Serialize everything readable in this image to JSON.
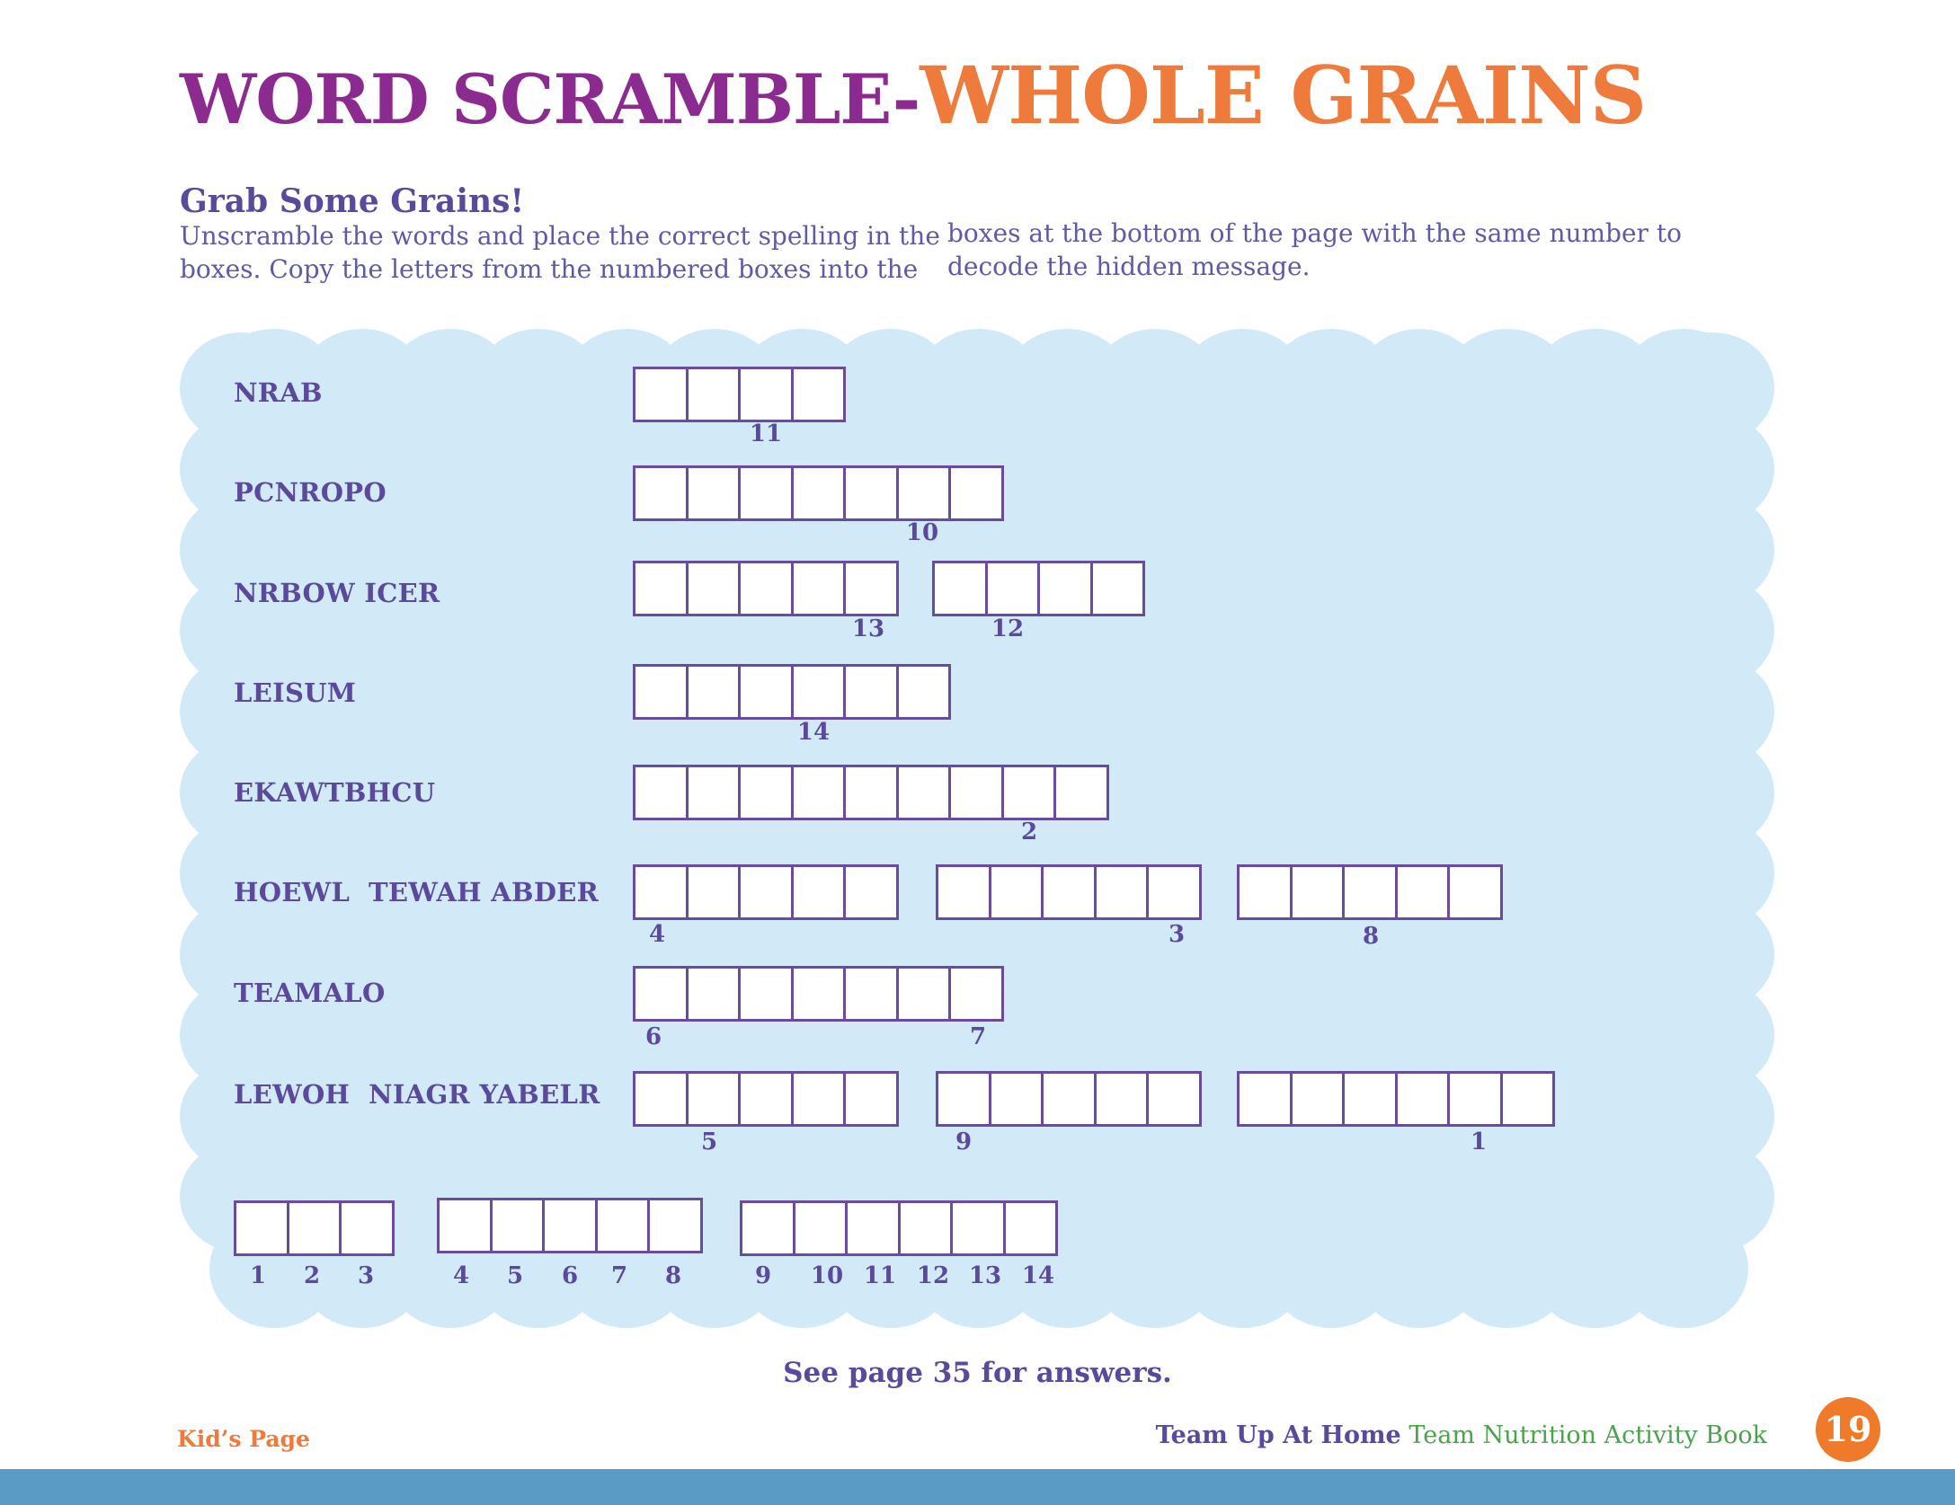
{
  "title": {
    "part1": "WORD SCRAMBLE-",
    "part2": "WHOLE GRAINS"
  },
  "subtitle": "Grab Some Grains!",
  "instructions": {
    "left_line1": "Unscramble the words and place the correct spelling in the",
    "left_line2": "boxes. Copy the letters from the numbered boxes into the",
    "right_line1": "boxes at the bottom of the page with the same number to",
    "right_line2": "decode the hidden message."
  },
  "puzzle": {
    "clues": [
      {
        "text": "NRAB",
        "box_counts": [
          4
        ],
        "numbers": [
          "11"
        ]
      },
      {
        "text": "PCNROPO",
        "box_counts": [
          7
        ],
        "numbers": [
          "10"
        ]
      },
      {
        "text": "NRBOW ICER",
        "box_counts": [
          5,
          4
        ],
        "numbers": [
          "13",
          "12"
        ]
      },
      {
        "text": "LEISUM",
        "box_counts": [
          6
        ],
        "numbers": [
          "14"
        ]
      },
      {
        "text": "EKAWTBHCU",
        "box_counts": [
          9
        ],
        "numbers": [
          "2"
        ]
      },
      {
        "text": "HOEWL  TEWAH ABDER",
        "box_counts": [
          5,
          5,
          5
        ],
        "numbers": [
          "4",
          "3",
          "8"
        ]
      },
      {
        "text": "TEAMALO",
        "box_counts": [
          7
        ],
        "numbers": [
          "6",
          "7"
        ]
      },
      {
        "text": "LEWOH  NIAGR YABELR",
        "box_counts": [
          5,
          5,
          6
        ],
        "numbers": [
          "5",
          "9",
          "1"
        ]
      }
    ],
    "message_groups": [
      {
        "numbers": [
          "1",
          "2",
          "3"
        ]
      },
      {
        "numbers": [
          "4",
          "5",
          "6",
          "7",
          "8"
        ]
      },
      {
        "numbers": [
          "9",
          "10",
          "11",
          "12",
          "13",
          "14"
        ]
      }
    ]
  },
  "answers_note": "See page 35 for answers.",
  "footer": {
    "section": "Kid’s Page",
    "book_bold": "Team Up At Home",
    "book_regular": "Team Nutrition Activity Book",
    "page_number": "19"
  },
  "colors": {
    "title_purple": "#8b2a8f",
    "title_orange": "#ee7a3c",
    "text_purple": "#5b4a9c",
    "cloud_blue": "#d2eaf8",
    "box_border": "#6a4b9e",
    "bottom_bar": "#5a9bc6",
    "page_badge": "#ef7b2a",
    "footer_green": "#4aa34a"
  }
}
